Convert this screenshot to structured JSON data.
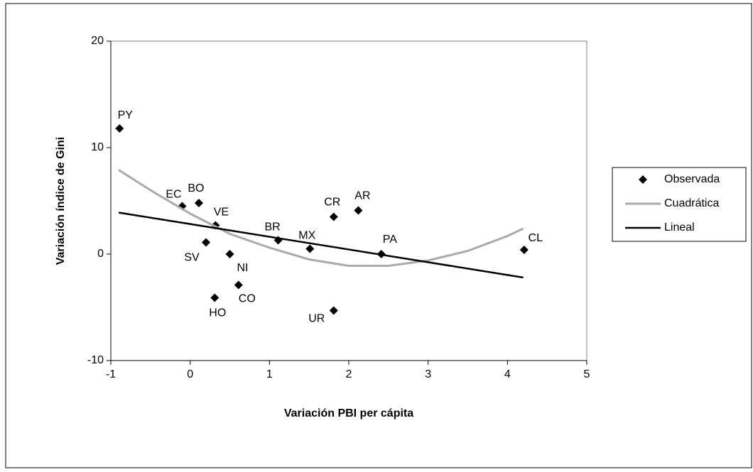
{
  "chart_data": {
    "type": "scatter",
    "x_label": "Variación PBI per cápita",
    "y_label": "Variación índice de Gini",
    "xlim": [
      -1,
      5
    ],
    "xticks": [
      -1,
      0,
      1,
      2,
      3,
      4,
      5
    ],
    "ylim": [
      -10,
      20
    ],
    "yticks": [
      -10,
      0,
      10,
      20
    ],
    "legend": "right",
    "series": [
      {
        "name": "Observada",
        "color": "#000000",
        "marker": "diamond",
        "labels": [
          "PY",
          "EC",
          "BO",
          "VE",
          "SV",
          "NI",
          "HO",
          "CO",
          "BR",
          "MX",
          "CR",
          "AR",
          "UR",
          "PA",
          "CL"
        ],
        "x": [
          -0.89,
          -0.1,
          0.11,
          0.32,
          0.2,
          0.5,
          0.31,
          0.61,
          1.11,
          1.51,
          1.81,
          2.12,
          1.81,
          2.41,
          4.21
        ],
        "values": [
          11.8,
          4.5,
          4.8,
          2.7,
          1.1,
          0,
          -4.1,
          -2.9,
          1.3,
          0.5,
          3.5,
          4.1,
          -5.3,
          0,
          0.4
        ]
      },
      {
        "name": "Cuadrática",
        "color": "#aaaaaa",
        "marker": "line",
        "x": [
          -0.9,
          -0.5,
          0,
          0.5,
          1,
          1.5,
          2,
          2.5,
          3,
          3.5,
          4,
          4.2
        ],
        "values": [
          7.9,
          6.0,
          3.8,
          1.9,
          0.6,
          -0.5,
          -1.1,
          -1.1,
          -0.6,
          0.3,
          1.7,
          2.4
        ]
      },
      {
        "name": "Lineal",
        "color": "#000000",
        "marker": "line",
        "x": [
          -0.9,
          4.2
        ],
        "values": [
          3.9,
          -2.2
        ]
      }
    ]
  }
}
